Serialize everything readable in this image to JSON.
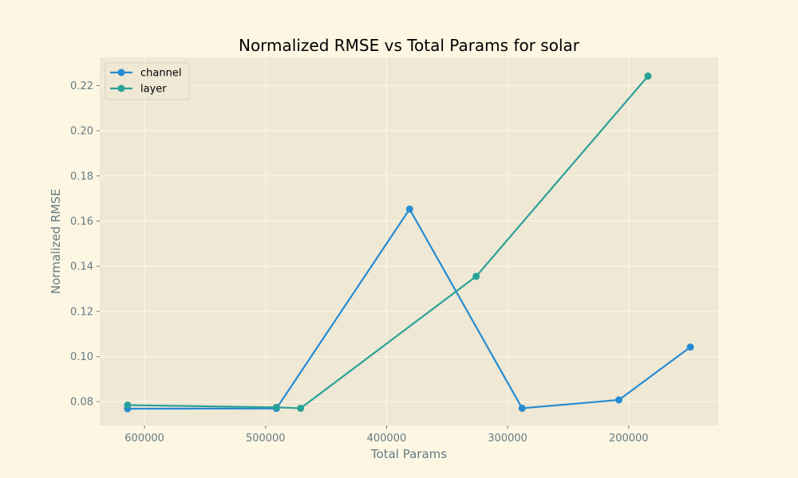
{
  "chart_data": {
    "type": "line",
    "title": "Normalized RMSE vs Total Params for solar",
    "xlabel": "Total Params",
    "ylabel": "Normalized RMSE",
    "xlim": [
      637000,
      126000
    ],
    "ylim": [
      0.0695,
      0.2325
    ],
    "x_inverted": true,
    "x_ticks": [
      600000,
      500000,
      400000,
      300000,
      200000
    ],
    "x_tick_labels": [
      "600000",
      "500000",
      "400000",
      "300000",
      "200000"
    ],
    "y_ticks": [
      0.08,
      0.1,
      0.12,
      0.14,
      0.16,
      0.18,
      0.2,
      0.22
    ],
    "y_tick_labels": [
      "0.08",
      "0.10",
      "0.12",
      "0.14",
      "0.16",
      "0.18",
      "0.20",
      "0.22"
    ],
    "grid": true,
    "legend_position": "top-left",
    "series": [
      {
        "name": "channel",
        "color": "#268bd2",
        "x": [
          614000,
          491000,
          381000,
          288000,
          208000,
          149000
        ],
        "y": [
          0.0769,
          0.077,
          0.1653,
          0.0771,
          0.0808,
          0.1042
        ]
      },
      {
        "name": "layer",
        "color": "#2aa198",
        "x": [
          614000,
          491000,
          471000,
          326000,
          184000
        ],
        "y": [
          0.0785,
          0.0775,
          0.0771,
          0.1355,
          0.2242
        ]
      }
    ],
    "colors": {
      "figure_background": "#fdf6e3",
      "plot_background": "#eee8d5",
      "grid": "#fdf6e3",
      "text": "#657b83"
    }
  }
}
